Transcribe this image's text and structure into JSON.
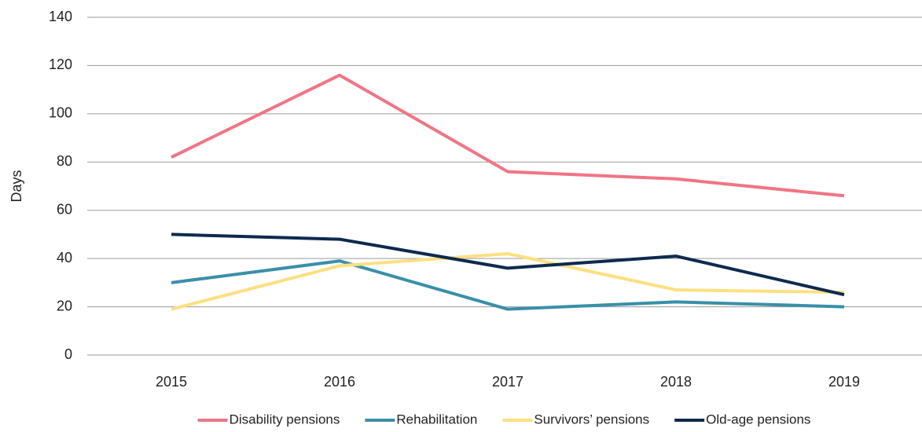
{
  "chart_data": {
    "type": "line",
    "ylabel": "Days",
    "categories": [
      "2015",
      "2016",
      "2017",
      "2018",
      "2019"
    ],
    "series": [
      {
        "name": "Disability pensions",
        "color": "#f07585",
        "values": [
          82,
          116,
          76,
          73,
          66
        ]
      },
      {
        "name": "Rehabilitation",
        "color": "#3a8fa8",
        "values": [
          30,
          39,
          19,
          22,
          20
        ]
      },
      {
        "name": "Survivors’ pensions",
        "color": "#fde07f",
        "values": [
          19,
          37,
          42,
          27,
          26
        ]
      },
      {
        "name": "Old-age pensions",
        "color": "#0e2a4f",
        "values": [
          50,
          48,
          36,
          41,
          25
        ]
      }
    ],
    "ylim": [
      0,
      140
    ],
    "yticks": [
      0,
      20,
      40,
      60,
      80,
      100,
      120,
      140
    ],
    "grid": true,
    "legend": "bottom"
  }
}
